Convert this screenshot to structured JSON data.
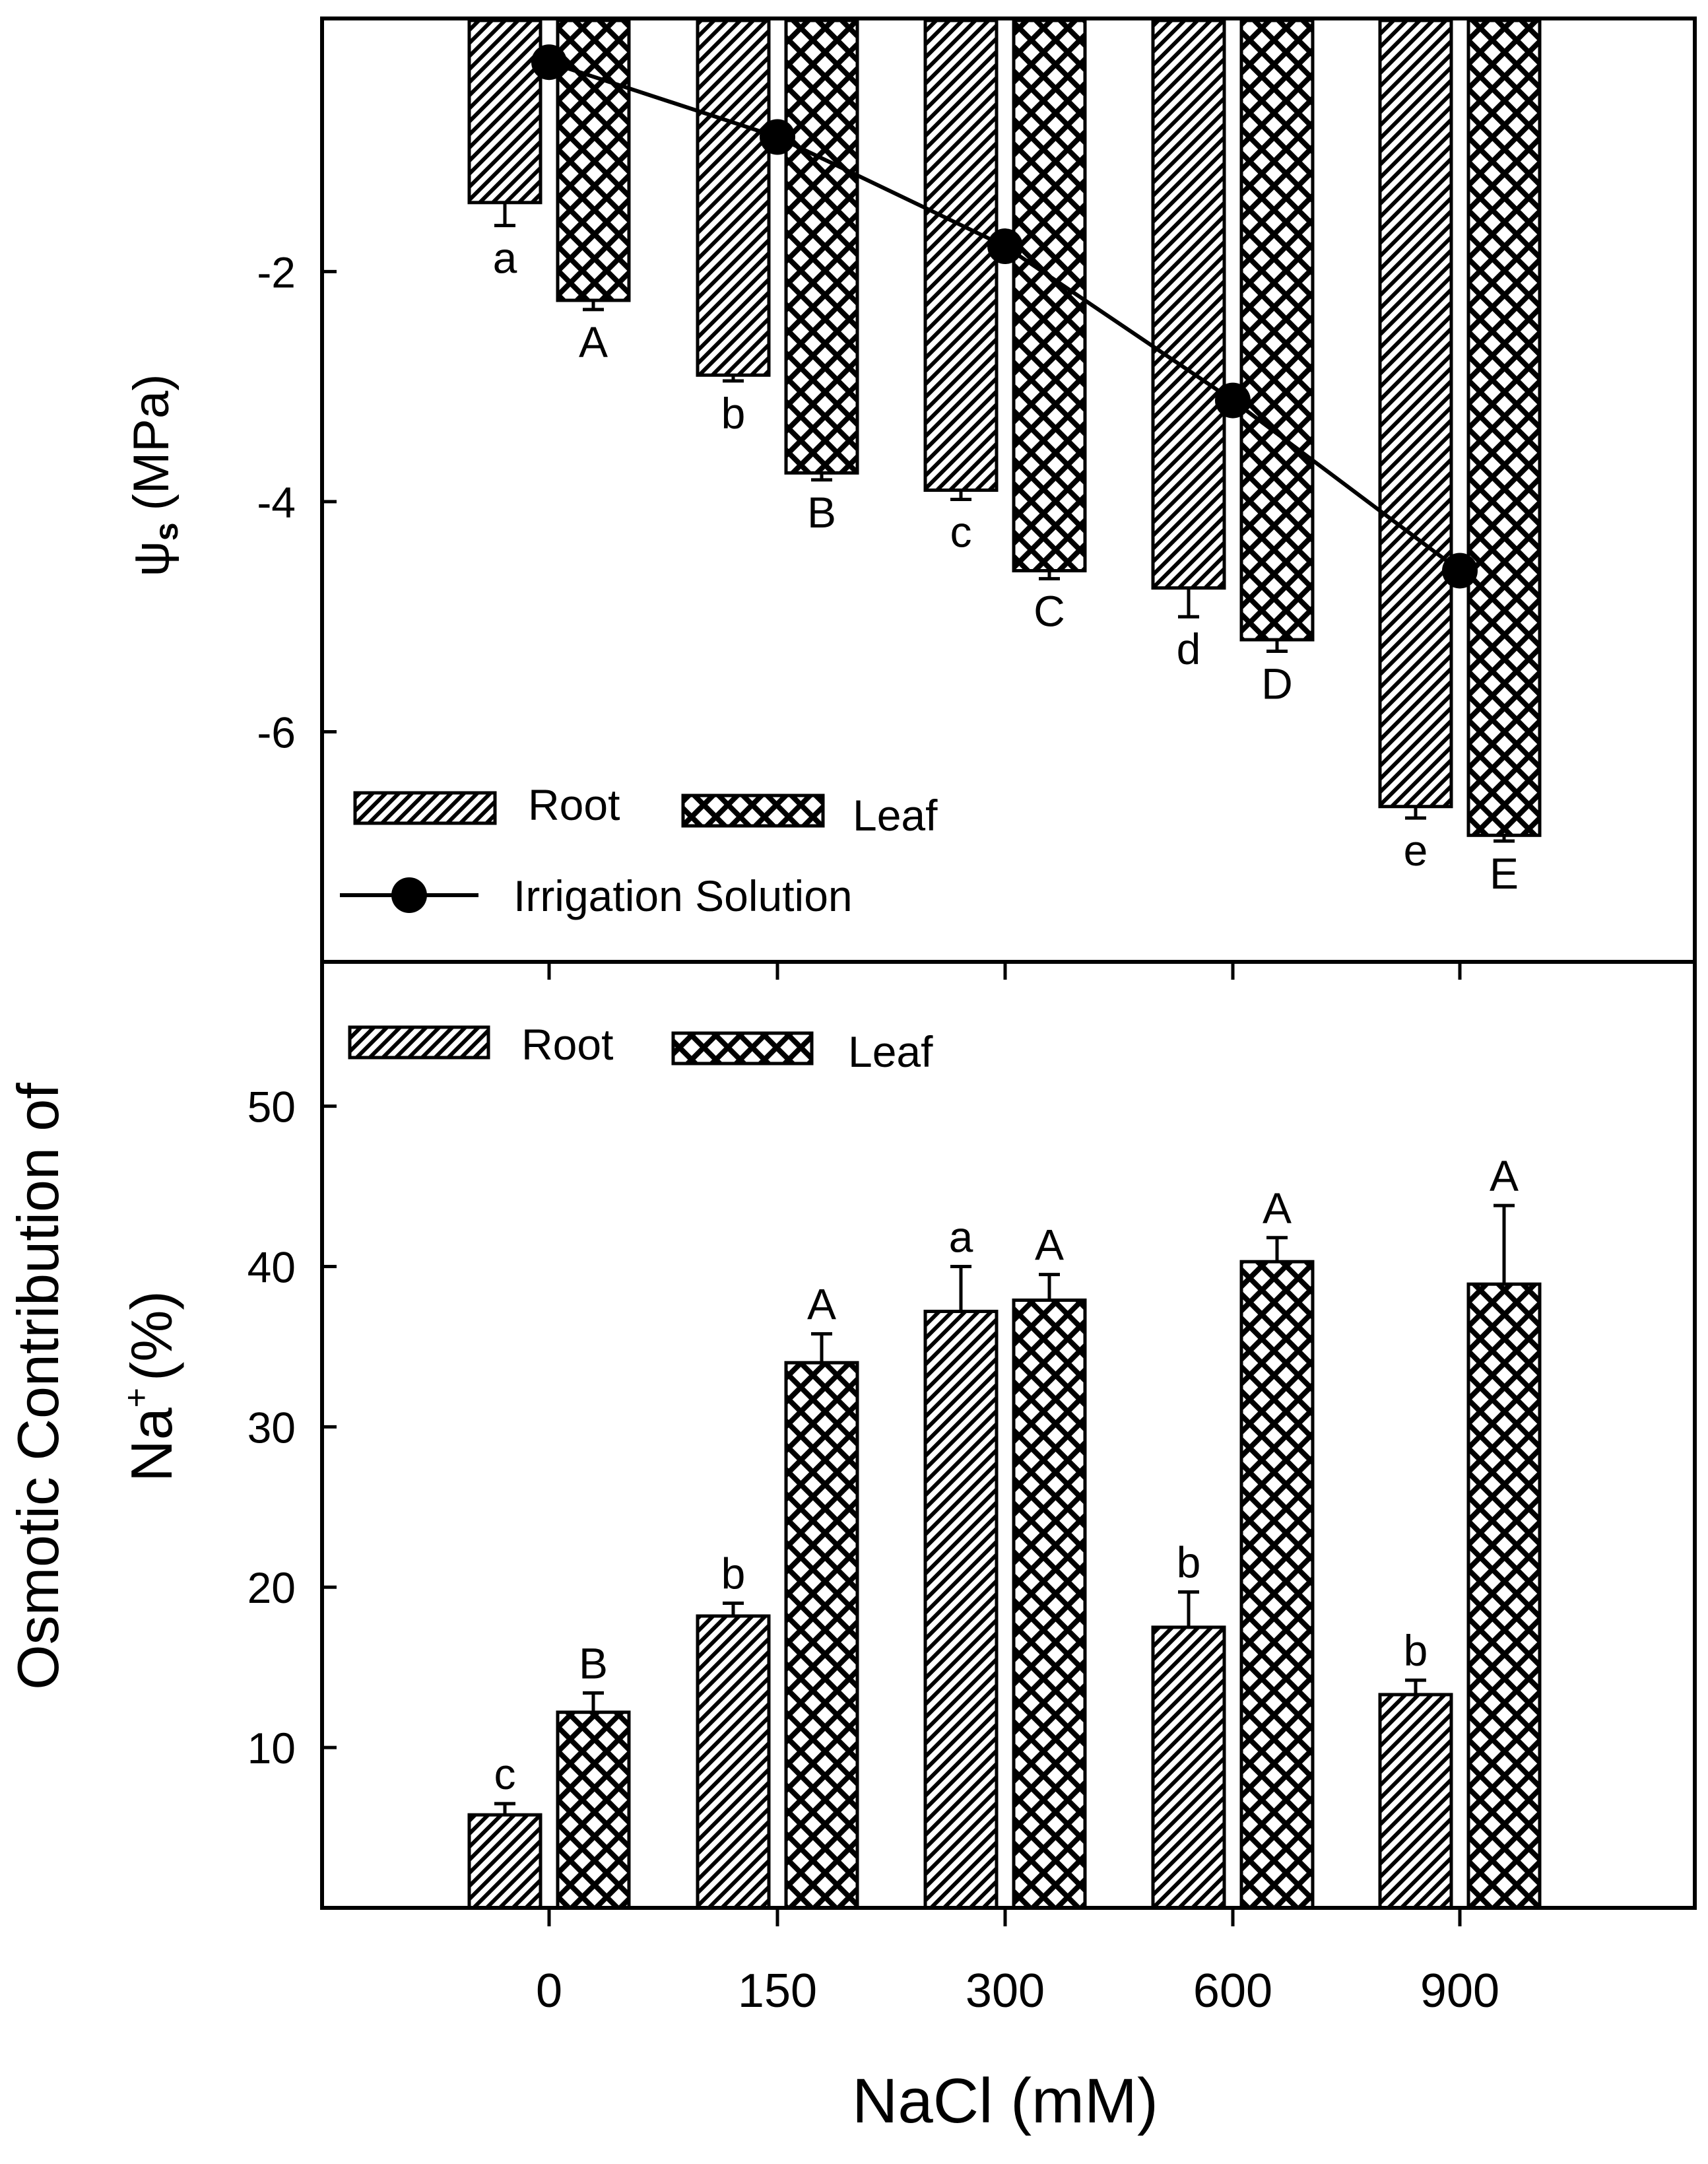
{
  "chart_data": [
    {
      "type": "bar",
      "panel": "top",
      "title": "",
      "xlabel": "NaCl (mM)",
      "ylabel_symbol": "ψ",
      "ylabel_subscript": "s",
      "ylabel_unit": "(MPa)",
      "categories": [
        "0",
        "150",
        "300",
        "600",
        "900"
      ],
      "ylim": [
        -8.0,
        0.2
      ],
      "yticks": [
        -2,
        -4,
        -6
      ],
      "ytick_labels": [
        "-2",
        "-4",
        "-6"
      ],
      "series": [
        {
          "name": "Root",
          "pattern": "diagonal",
          "values": [
            -1.4,
            -2.9,
            -3.9,
            -4.75,
            -6.65
          ],
          "errors": [
            0.2,
            0.05,
            0.08,
            0.25,
            0.1
          ],
          "letters": [
            "a",
            "b",
            "c",
            "d",
            "e"
          ]
        },
        {
          "name": "Leaf",
          "pattern": "crosshatch",
          "values": [
            -2.25,
            -3.75,
            -4.6,
            -5.2,
            -6.9
          ],
          "errors": [
            0.08,
            0.06,
            0.07,
            0.1,
            0.05
          ],
          "letters": [
            "A",
            "B",
            "C",
            "D",
            "E"
          ]
        }
      ],
      "line_series": {
        "name": "Irrigation Solution",
        "values": [
          -0.18,
          -0.83,
          -1.78,
          -3.12,
          -4.6
        ]
      },
      "legend": {
        "root_label": "Root",
        "leaf_label": "Leaf",
        "line_label": "Irrigation Solution",
        "placement": "bottom-left"
      }
    },
    {
      "type": "bar",
      "panel": "bottom",
      "title": "",
      "xlabel": "NaCl (mM)",
      "ylabel_line1": "Osmotic Contribution of",
      "ylabel_line2_prefix": "Na",
      "ylabel_line2_sup": "+",
      "ylabel_line2_suffix": "(%)",
      "categories": [
        "0",
        "150",
        "300",
        "600",
        "900"
      ],
      "ylim": [
        0,
        59
      ],
      "yticks": [
        10,
        20,
        30,
        40,
        50
      ],
      "ytick_labels": [
        "10",
        "20",
        "30",
        "40",
        "50"
      ],
      "series": [
        {
          "name": "Root",
          "pattern": "diagonal",
          "values": [
            5.8,
            18.2,
            37.2,
            17.5,
            13.3
          ],
          "errors": [
            0.7,
            0.8,
            2.8,
            2.2,
            0.9
          ],
          "letters": [
            "c",
            "b",
            "a",
            "b",
            "b"
          ]
        },
        {
          "name": "Leaf",
          "pattern": "crosshatch",
          "values": [
            12.2,
            34.0,
            37.9,
            40.3,
            38.9
          ],
          "errors": [
            1.2,
            1.8,
            1.6,
            1.5,
            4.9
          ],
          "letters": [
            "B",
            "A",
            "A",
            "A",
            "A"
          ]
        }
      ],
      "legend": {
        "root_label": "Root",
        "leaf_label": "Leaf",
        "placement": "top-left"
      }
    }
  ],
  "xaxis": {
    "label": "NaCl (mM)",
    "tick_labels": [
      "0",
      "150",
      "300",
      "600",
      "900"
    ]
  }
}
